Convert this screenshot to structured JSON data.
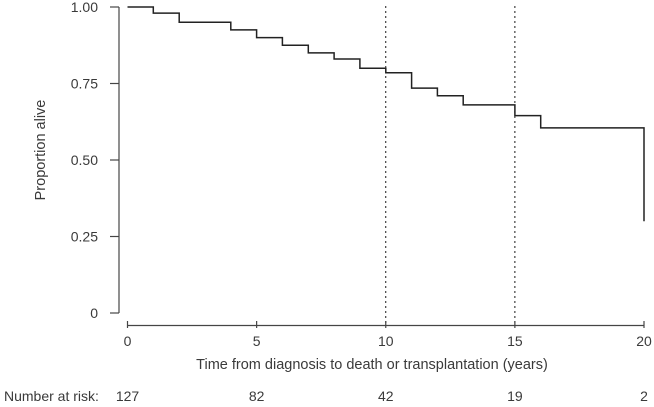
{
  "chart_data": {
    "type": "line",
    "subtype": "kaplan-meier-step-curve",
    "title": "",
    "xlabel": "Time from diagnosis to death or transplantation (years)",
    "ylabel": "Proportion alive",
    "xlim": [
      0,
      20
    ],
    "ylim": [
      0,
      1.0
    ],
    "grid": false,
    "legend": false,
    "x_ticks": [
      {
        "label": "0",
        "value": 0
      },
      {
        "label": "5",
        "value": 5
      },
      {
        "label": "10",
        "value": 10
      },
      {
        "label": "15",
        "value": 15
      },
      {
        "label": "20",
        "value": 20
      }
    ],
    "y_ticks": [
      {
        "label": "1.00",
        "value": 1.0
      },
      {
        "label": "0.75",
        "value": 0.75
      },
      {
        "label": "0.50",
        "value": 0.5
      },
      {
        "label": "0.25",
        "value": 0.25
      },
      {
        "label": "0",
        "value": 0
      }
    ],
    "reference_lines_x": [
      10,
      15
    ],
    "series": [
      {
        "name": "proportion-alive",
        "steps": [
          {
            "time": 0,
            "survival": 1.0
          },
          {
            "time": 1,
            "survival": 0.98
          },
          {
            "time": 2,
            "survival": 0.95
          },
          {
            "time": 4,
            "survival": 0.925
          },
          {
            "time": 5,
            "survival": 0.9
          },
          {
            "time": 6,
            "survival": 0.875
          },
          {
            "time": 7,
            "survival": 0.85
          },
          {
            "time": 8,
            "survival": 0.83
          },
          {
            "time": 9,
            "survival": 0.8
          },
          {
            "time": 10,
            "survival": 0.785
          },
          {
            "time": 11,
            "survival": 0.735
          },
          {
            "time": 12,
            "survival": 0.71
          },
          {
            "time": 13,
            "survival": 0.68
          },
          {
            "time": 15,
            "survival": 0.645
          },
          {
            "time": 16,
            "survival": 0.605
          },
          {
            "time": 20,
            "survival": 0.3
          }
        ]
      }
    ],
    "risk_table": {
      "label": "Number at risk:",
      "times": [
        0,
        5,
        10,
        15,
        20
      ],
      "counts": [
        "127",
        "82",
        "42",
        "19",
        "2"
      ]
    },
    "colors": {
      "curve": "#222222",
      "axis": "#454545",
      "text": "#3a3a3a",
      "reference_line": "#1a1a1a",
      "background": "#ffffff"
    }
  }
}
